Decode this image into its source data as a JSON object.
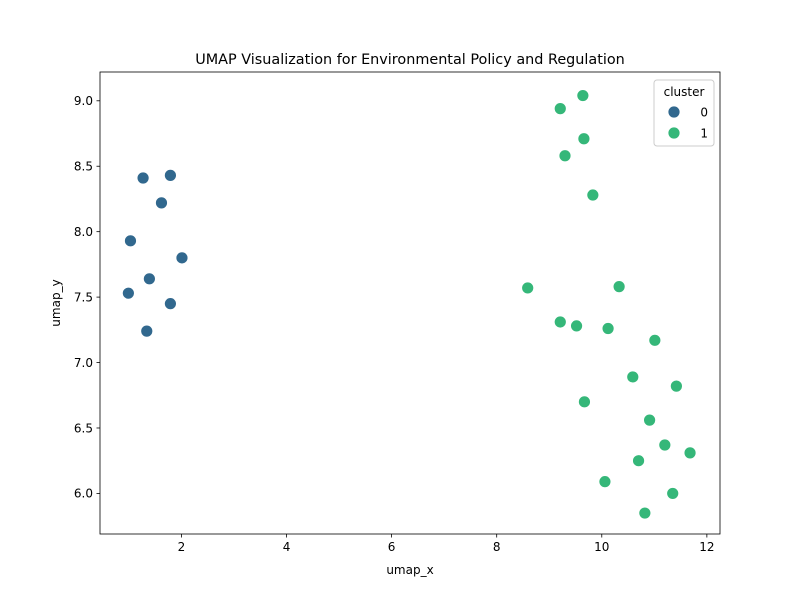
{
  "chart_data": {
    "type": "scatter",
    "title": "UMAP Visualization for Environmental Policy and Regulation",
    "xlabel": "umap_x",
    "ylabel": "umap_y",
    "xlim": [
      0.45,
      12.25
    ],
    "ylim": [
      5.69,
      9.22
    ],
    "xticks": [
      "2",
      "4",
      "6",
      "8",
      "10",
      "12"
    ],
    "yticks": [
      "6.0",
      "6.5",
      "7.0",
      "7.5",
      "8.0",
      "8.5",
      "9.0"
    ],
    "grid": false,
    "legend": {
      "title": "cluster",
      "position": "top-right"
    },
    "series": [
      {
        "name": "0",
        "color": "#31688e",
        "points": [
          [
            1.27,
            8.41
          ],
          [
            1.79,
            8.43
          ],
          [
            1.62,
            8.22
          ],
          [
            1.03,
            7.93
          ],
          [
            2.01,
            7.8
          ],
          [
            1.39,
            7.64
          ],
          [
            0.99,
            7.53
          ],
          [
            1.79,
            7.45
          ],
          [
            1.34,
            7.24
          ]
        ]
      },
      {
        "name": "1",
        "color": "#35b779",
        "points": [
          [
            9.21,
            8.94
          ],
          [
            9.64,
            9.04
          ],
          [
            9.66,
            8.71
          ],
          [
            9.3,
            8.58
          ],
          [
            9.83,
            8.28
          ],
          [
            8.59,
            7.57
          ],
          [
            10.33,
            7.58
          ],
          [
            9.21,
            7.31
          ],
          [
            9.52,
            7.28
          ],
          [
            10.12,
            7.26
          ],
          [
            11.01,
            7.17
          ],
          [
            10.59,
            6.89
          ],
          [
            11.42,
            6.82
          ],
          [
            9.67,
            6.7
          ],
          [
            10.91,
            6.56
          ],
          [
            11.2,
            6.37
          ],
          [
            11.68,
            6.31
          ],
          [
            10.7,
            6.25
          ],
          [
            10.06,
            6.09
          ],
          [
            11.35,
            6.0
          ],
          [
            10.82,
            5.85
          ]
        ]
      }
    ]
  }
}
